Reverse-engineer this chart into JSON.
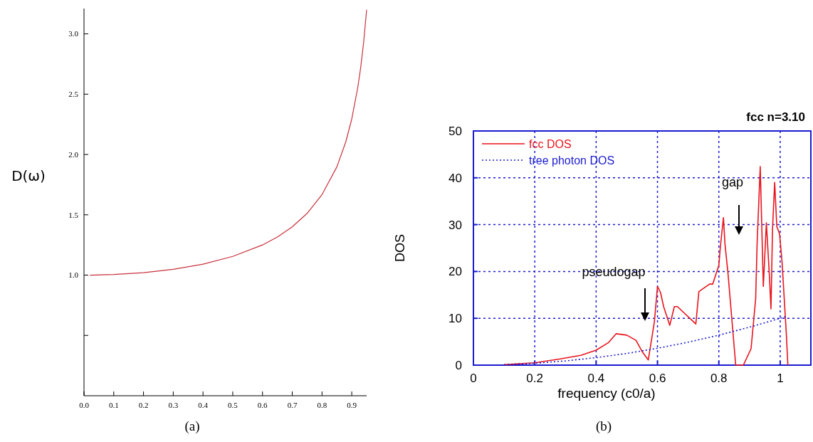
{
  "chart_data": [
    {
      "type": "line",
      "ylabel": "D(ω)",
      "annotations": [
        "(a)"
      ],
      "xlim": [
        0,
        0.95
      ],
      "ylim": [
        0,
        3.21
      ],
      "xticks": [
        {
          "value": 0,
          "label": "0.0"
        },
        0.1,
        0.2,
        0.3,
        0.4,
        0.5,
        0.6,
        0.7,
        0.8,
        0.9
      ],
      "yticks": [
        {
          "value": 0.5,
          "label": null
        },
        {
          "value": 1,
          "label": "1.0"
        },
        1.5,
        {
          "value": 2,
          "label": "2.0"
        },
        2.5,
        {
          "value": 3,
          "label": "3.0"
        }
      ],
      "series": [
        {
          "color": "#c8303c",
          "x": [
            0.02,
            0.1,
            0.2,
            0.3,
            0.4,
            0.5,
            0.6,
            0.65,
            0.7,
            0.75,
            0.8,
            0.85,
            0.88,
            0.9,
            0.92,
            0.93,
            0.94,
            0.95
          ],
          "values": [
            1.0,
            1.005,
            1.02,
            1.048,
            1.091,
            1.155,
            1.25,
            1.316,
            1.4,
            1.512,
            1.667,
            1.898,
            2.105,
            2.294,
            2.552,
            2.72,
            2.93,
            3.2
          ]
        }
      ]
    },
    {
      "type": "line",
      "title": "fcc n=3.10",
      "xlabel": "frequency (c0/a)",
      "ylabel": "DOS",
      "legend": "top left",
      "grid": true,
      "annotations": [
        "pseudogap",
        "gap",
        "(b)"
      ],
      "xlim": [
        0,
        1.1
      ],
      "ylim": [
        0,
        50
      ],
      "xticks": [
        0,
        0.2,
        0.4,
        0.6,
        0.8,
        1
      ],
      "yticks": [
        0,
        10,
        20,
        30,
        40,
        50
      ],
      "series": [
        {
          "name": "fcc DOS",
          "color": "#e8141c",
          "line_style": "solid",
          "x": [
            0.1,
            0.2,
            0.28,
            0.35,
            0.4,
            0.44,
            0.465,
            0.5,
            0.53,
            0.55,
            0.57,
            0.59,
            0.6,
            0.61,
            0.62,
            0.64,
            0.655,
            0.665,
            0.725,
            0.735,
            0.77,
            0.78,
            0.8,
            0.805,
            0.815,
            0.82,
            0.83,
            0.855,
            0.88,
            0.905,
            0.92,
            0.925,
            0.935,
            0.94,
            0.945,
            0.955,
            0.965,
            0.97,
            0.975,
            0.982,
            0.989,
            0.998,
            1.006,
            1.02,
            1.025
          ],
          "values": [
            0.1,
            0.5,
            1.3,
            2.1,
            3.2,
            4.8,
            6.7,
            6.4,
            5.3,
            2.9,
            1.1,
            9.3,
            16.8,
            15.5,
            12.5,
            8.5,
            12.5,
            12.5,
            8.8,
            15.7,
            17.3,
            17.3,
            21.3,
            25.3,
            31.5,
            25.9,
            19.5,
            0,
            0,
            3.5,
            14.1,
            26.4,
            42.4,
            29.6,
            16.8,
            30.4,
            18.9,
            12,
            29.1,
            39,
            29.6,
            28,
            22.1,
            6.7,
            0
          ]
        },
        {
          "name": "tree photon DOS",
          "color": "#1a1ad0",
          "line_style": "dotted",
          "x": [
            0.1,
            0.2,
            0.3,
            0.4,
            0.5,
            0.6,
            0.7,
            0.8,
            0.9,
            1.0,
            1.02
          ],
          "values": [
            0.1,
            0.4,
            0.9,
            1.6,
            2.5,
            3.6,
            4.9,
            6.4,
            8.1,
            10,
            10.4
          ]
        }
      ]
    }
  ]
}
